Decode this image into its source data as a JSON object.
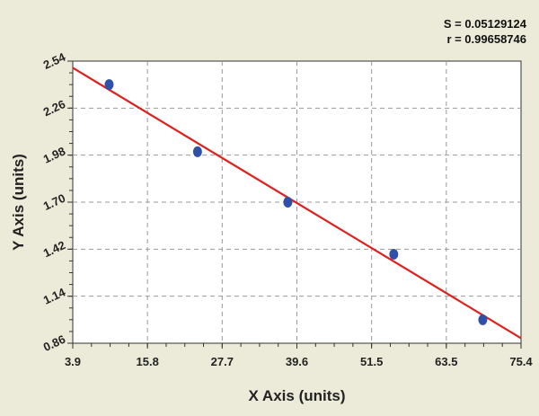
{
  "chart_data": {
    "type": "scatter",
    "title": "",
    "xlabel": "X Axis (units)",
    "ylabel": "Y Axis (units)",
    "xlim": [
      3.9,
      75.4
    ],
    "ylim": [
      0.86,
      2.54
    ],
    "xticks": [
      "3.9",
      "15.8",
      "27.7",
      "39.6",
      "51.5",
      "63.5",
      "75.4"
    ],
    "yticks": [
      "0.86",
      "1.14",
      "1.42",
      "1.70",
      "1.98",
      "2.26",
      "2.54"
    ],
    "grid": true,
    "annotations": [
      "S = 0.05129124",
      "r = 0.99658746"
    ],
    "series": [
      {
        "type": "scatter",
        "color": "#2f4fa8",
        "x": [
          9.7,
          23.8,
          38.2,
          55.1,
          69.3
        ],
        "y": [
          2.4,
          2.0,
          1.7,
          1.39,
          1.0
        ]
      },
      {
        "type": "line",
        "color": "#e0201c",
        "x": [
          3.9,
          75.4
        ],
        "y": [
          2.5,
          0.89
        ]
      }
    ]
  }
}
